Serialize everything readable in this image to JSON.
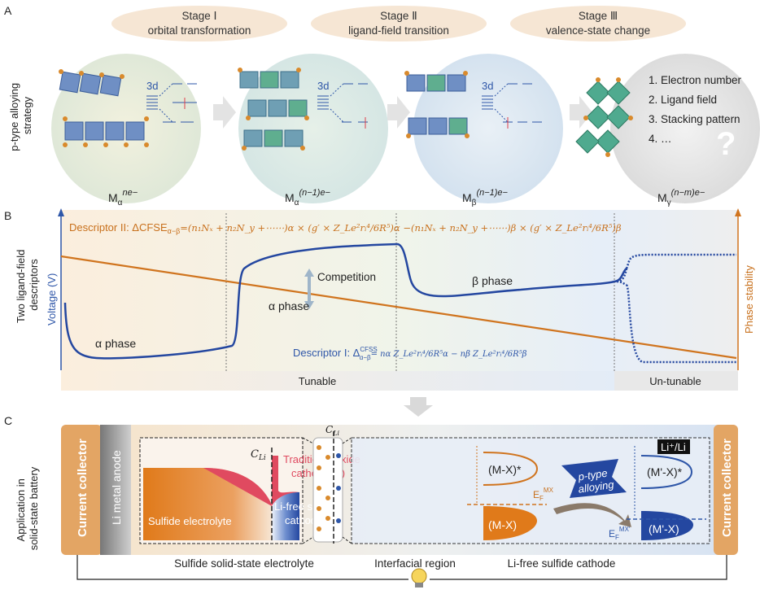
{
  "panel_a": {
    "label": "A",
    "side_label": [
      "p-type alloying",
      "strategy"
    ],
    "stages": [
      {
        "title": "Stage Ⅰ",
        "subtitle": "orbital transformation"
      },
      {
        "title": "Stage Ⅱ",
        "subtitle": "ligand-field transition"
      },
      {
        "title": "Stage Ⅲ",
        "subtitle": "valence-state change"
      }
    ],
    "orbital_label": "3d",
    "phases": [
      {
        "base": "M",
        "sub": "α",
        "sup": "ne−"
      },
      {
        "base": "M",
        "sub": "α",
        "sup": "(n−1)e−"
      },
      {
        "base": "M",
        "sub": "β",
        "sup": "(n−1)e−"
      },
      {
        "base": "M",
        "sub": "γ",
        "sup": "(n−m)e−"
      }
    ],
    "factors": [
      "1. Electron number",
      "2. Ligand field",
      "3. Stacking pattern",
      "4. …"
    ],
    "question_mark": "?"
  },
  "panel_b": {
    "label": "B",
    "side_label": [
      "Two ligand-field",
      "descriptors"
    ],
    "y_left": "Voltage (V)",
    "y_right": "Phase stability",
    "descriptor_2": "Descriptor II: ΔCFSE",
    "descriptor_2_sub": "α−β",
    "descriptor_2_expr": "=(n₁Nₓ + n₂N_y +⋯⋯)α × (g′ × Z_Le²rᵢ⁴/6R⁵)α −(n₁Nₓ + n₂N_y +⋯⋯)β × (g′ × Z_Le²rᵢ⁴/6R⁵)β",
    "descriptor_1": "Descriptor I: Δ",
    "descriptor_1_sup": "CFSS",
    "descriptor_1_sub": "α−β",
    "descriptor_1_expr": "= nα Z_Le²rᵢ⁴/6R⁵α − nβ Z_Le²rᵢ⁴/6R⁵β",
    "annotations": {
      "alpha_low": "α phase",
      "alpha_mid": "α phase",
      "beta": "β phase",
      "competition": "Competition"
    },
    "regions": {
      "tunable": "Tunable",
      "untunable": "Un-tunable"
    },
    "colors": {
      "voltage": "#2e56a8",
      "stability": "#d0741e"
    }
  },
  "panel_c": {
    "label": "C",
    "side_label": [
      "Application in",
      "solid-state battery"
    ],
    "current_collector": "Current collector",
    "anode": "Li metal anode",
    "c_li": "C",
    "c_li_sub": "Li",
    "traditional": [
      "Traditional oxide",
      "cathode (×)"
    ],
    "electrolyte": "Sulfide electrolyte",
    "li_free": [
      "Li-free sulfide",
      "cathode (√)"
    ],
    "li_ref": "Li⁺/Li",
    "bands": {
      "mx_star": "(M-X)*",
      "mx": "(M-X)",
      "mpx_star": "(M'-X)*",
      "mpx": "(M'-X)",
      "ef": "E",
      "ef_sub": "F",
      "ef_sup": "MX",
      "ef2_sup": "MX'"
    },
    "alloying": [
      "p-type",
      "alloying"
    ],
    "bottom_labels": [
      "Sulfide solid-state electrolyte",
      "Interfacial region",
      "Li-free sulfide cathode"
    ]
  }
}
